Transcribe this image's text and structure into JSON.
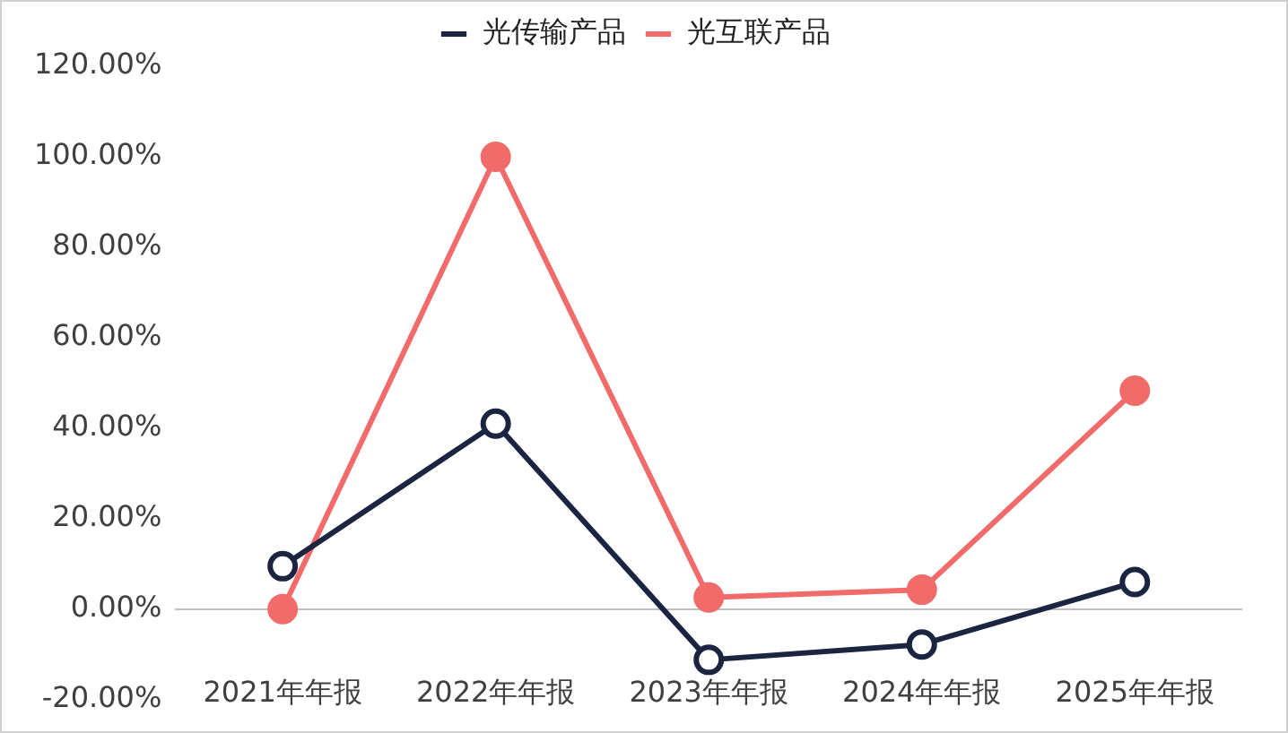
{
  "chart_data": {
    "type": "line",
    "categories": [
      "2021年年报",
      "2022年年报",
      "2023年年报",
      "2024年年报",
      "2025年年报"
    ],
    "series": [
      {
        "name": "光传输产品",
        "color": "#1b2440",
        "values": [
          9.5,
          41,
          -11.2,
          -7.8,
          6
        ]
      },
      {
        "name": "光互联产品",
        "color": "#f26b6b",
        "values": [
          0,
          100,
          2.6,
          4.3,
          48.3
        ]
      }
    ],
    "ylim": [
      -20,
      120
    ],
    "yticks": [
      {
        "value": -20,
        "label": "-20.00%"
      },
      {
        "value": 0,
        "label": "0.00%"
      },
      {
        "value": 20,
        "label": "20.00%"
      },
      {
        "value": 40,
        "label": "40.00%"
      },
      {
        "value": 60,
        "label": "60.00%"
      },
      {
        "value": 80,
        "label": "80.00%"
      },
      {
        "value": 100,
        "label": "100.00%"
      },
      {
        "value": 120,
        "label": "120.00%"
      }
    ],
    "grid": false,
    "legend": "top",
    "marker": "circle",
    "line_style": "solid"
  }
}
